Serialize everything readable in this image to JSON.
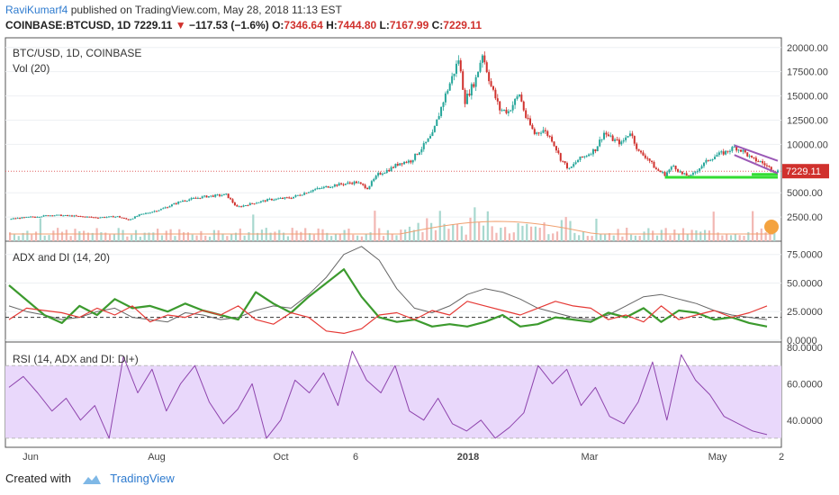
{
  "header": {
    "user": "RaviKumarf4",
    "published_text": "published on TradingView.com, May 28, 2018 11:13 EST",
    "symbol": "COINBASE:BTCUSD, 1D",
    "last": "7229.11",
    "arrow": "▼",
    "change": "−117.53 (−1.6%)",
    "o_label": "O:",
    "o": "7346.64",
    "h_label": "H:",
    "h": "7444.80",
    "l_label": "L:",
    "l": "7167.99",
    "c_label": "C:",
    "c": "7229.11"
  },
  "footer": {
    "created": "Created with",
    "brand": "TradingView",
    "icon": "tradingview-logo-icon"
  },
  "colors": {
    "up": "#26a69a",
    "down": "#d0312d",
    "green_line": "#33dd33",
    "trend": "#9b59b6",
    "rsi_band": "#e9d8fb",
    "rsi_line": "#8e44ad",
    "adx": "#666666",
    "di_plus": "#3c9a2e",
    "di_minus": "#e53935",
    "price_badge": "#d0312d"
  },
  "chart_data": [
    {
      "type": "candlestick",
      "title": "BTC/USD, 1D, COINBASE",
      "subtitle": "Vol (20)",
      "y_ticks": [
        "20000.00",
        "17500.00",
        "15000.00",
        "12500.00",
        "10000.00",
        "7229.11",
        "5000.00",
        "2500.00"
      ],
      "ylim": [
        0,
        21000
      ],
      "last_price": 7229.11,
      "x_ticks": [
        "Jun",
        "Aug",
        "Oct",
        "6",
        "2018",
        "Mar",
        "May",
        "2"
      ],
      "close_path": [
        [
          0,
          2300
        ],
        [
          10,
          2500
        ],
        [
          20,
          2700
        ],
        [
          30,
          2600
        ],
        [
          40,
          2450
        ],
        [
          50,
          2550
        ],
        [
          55,
          2200
        ],
        [
          60,
          2700
        ],
        [
          70,
          3300
        ],
        [
          80,
          4200
        ],
        [
          90,
          4600
        ],
        [
          100,
          4800
        ],
        [
          105,
          3500
        ],
        [
          110,
          3800
        ],
        [
          120,
          4300
        ],
        [
          130,
          4500
        ],
        [
          140,
          5300
        ],
        [
          150,
          5800
        ],
        [
          160,
          6100
        ],
        [
          165,
          5500
        ],
        [
          170,
          6900
        ],
        [
          175,
          7400
        ],
        [
          180,
          8100
        ],
        [
          185,
          8300
        ],
        [
          190,
          9600
        ],
        [
          195,
          11000
        ],
        [
          200,
          14500
        ],
        [
          205,
          17500
        ],
        [
          207,
          18800
        ],
        [
          210,
          14500
        ],
        [
          215,
          16800
        ],
        [
          218,
          19400
        ],
        [
          222,
          16000
        ],
        [
          226,
          13600
        ],
        [
          230,
          13400
        ],
        [
          235,
          15200
        ],
        [
          238,
          12800
        ],
        [
          242,
          11100
        ],
        [
          246,
          11500
        ],
        [
          250,
          10500
        ],
        [
          254,
          8500
        ],
        [
          258,
          7400
        ],
        [
          262,
          8400
        ],
        [
          266,
          8900
        ],
        [
          270,
          9500
        ],
        [
          274,
          11200
        ],
        [
          278,
          10500
        ],
        [
          282,
          10100
        ],
        [
          286,
          11300
        ],
        [
          290,
          9200
        ],
        [
          294,
          8600
        ],
        [
          298,
          7400
        ],
        [
          302,
          6900
        ],
        [
          306,
          7800
        ],
        [
          310,
          6900
        ],
        [
          314,
          6700
        ],
        [
          318,
          7600
        ],
        [
          322,
          8400
        ],
        [
          326,
          8900
        ],
        [
          330,
          9200
        ],
        [
          334,
          9700
        ],
        [
          338,
          9300
        ],
        [
          342,
          8500
        ],
        [
          346,
          8200
        ],
        [
          350,
          7600
        ],
        [
          353,
          7229
        ]
      ],
      "support_level": 6600,
      "annotations": [
        "horizontal support line",
        "descending channel"
      ],
      "volume_series": "Vol (20)"
    },
    {
      "type": "line",
      "title": "ADX and DI (14, 20)",
      "y_ticks": [
        "75.0000",
        "50.0000",
        "25.0000",
        "0.0000"
      ],
      "ylim": [
        0,
        85
      ],
      "threshold": 20,
      "series": [
        {
          "name": "ADX",
          "values": [
            30,
            25,
            22,
            18,
            20,
            25,
            28,
            20,
            18,
            16,
            24,
            22,
            18,
            20,
            26,
            30,
            28,
            40,
            55,
            75,
            82,
            70,
            45,
            28,
            24,
            30,
            40,
            45,
            42,
            36,
            28,
            24,
            20,
            18,
            22,
            30,
            38,
            40,
            36,
            32,
            26,
            22,
            20,
            18
          ]
        },
        {
          "name": "DI+",
          "values": [
            48,
            35,
            22,
            15,
            30,
            22,
            36,
            28,
            30,
            25,
            32,
            26,
            22,
            18,
            42,
            32,
            24,
            38,
            50,
            62,
            38,
            20,
            16,
            18,
            12,
            14,
            12,
            16,
            22,
            12,
            14,
            20,
            18,
            16,
            24,
            20,
            28,
            16,
            26,
            24,
            18,
            20,
            15,
            12
          ]
        },
        {
          "name": "DI-",
          "values": [
            18,
            28,
            26,
            24,
            20,
            28,
            22,
            30,
            16,
            22,
            20,
            26,
            22,
            30,
            18,
            14,
            24,
            20,
            8,
            6,
            10,
            22,
            24,
            18,
            26,
            22,
            34,
            30,
            26,
            22,
            28,
            34,
            30,
            28,
            18,
            22,
            16,
            30,
            18,
            22,
            26,
            20,
            24,
            30
          ]
        }
      ]
    },
    {
      "type": "line",
      "title": "RSI (14, ADX and DI: DI+)",
      "y_ticks": [
        "80.0000",
        "60.0000",
        "40.0000"
      ],
      "ylim": [
        26,
        82
      ],
      "band": [
        30,
        70
      ],
      "series": [
        {
          "name": "RSI",
          "values": [
            58,
            64,
            55,
            45,
            52,
            40,
            48,
            30,
            75,
            55,
            68,
            45,
            60,
            70,
            50,
            38,
            46,
            60,
            30,
            40,
            62,
            55,
            66,
            48,
            78,
            62,
            55,
            70,
            45,
            40,
            52,
            38,
            34,
            40,
            30,
            36,
            44,
            70,
            60,
            68,
            48,
            58,
            42,
            38,
            50,
            72,
            40,
            76,
            62,
            54,
            42,
            38,
            34,
            32
          ]
        }
      ]
    }
  ]
}
